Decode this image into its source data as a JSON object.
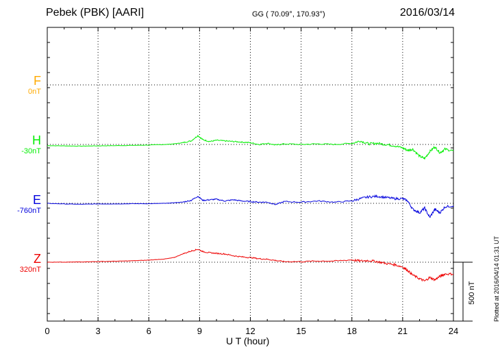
{
  "header": {
    "station": "Pebek (PBK)  [AARI]",
    "coords": "GG ( 70.09°, 170.93°)",
    "date": "2016/03/14"
  },
  "footer": {
    "plotted": "Plotted at 2016/04/14 01:31  UT",
    "scale": "500 nT"
  },
  "components": [
    {
      "name": "F",
      "baseline": "0nT",
      "color": "#ffaa00"
    },
    {
      "name": "H",
      "baseline": "-30nT",
      "color": "#00ee00"
    },
    {
      "name": "E",
      "baseline": "-760nT",
      "color": "#0000dd"
    },
    {
      "name": "Z",
      "baseline": "320nT",
      "color": "#ee0000"
    }
  ],
  "chart_data": {
    "type": "line",
    "xlabel": "U T (hour)",
    "xlim": [
      0,
      24
    ],
    "xticks": [
      "0",
      "3",
      "6",
      "9",
      "12",
      "15",
      "18",
      "21",
      "24"
    ],
    "scale_bar_nT": 500,
    "series": [
      {
        "name": "H",
        "color": "#00ee00",
        "x": [
          0,
          1,
          2,
          3,
          4,
          5,
          6,
          7,
          7.5,
          8,
          8.5,
          8.9,
          9.2,
          9.6,
          10,
          10.5,
          11,
          11.5,
          12,
          12.5,
          13,
          13.5,
          14,
          15,
          16,
          17,
          18,
          18.5,
          19,
          19.5,
          20,
          20.5,
          21,
          21.3,
          21.6,
          22,
          22.3,
          22.6,
          22.9,
          23.2,
          23.5,
          24
        ],
        "y": [
          -10,
          -12,
          -14,
          -12,
          -10,
          -8,
          -5,
          0,
          5,
          15,
          30,
          75,
          40,
          25,
          35,
          30,
          25,
          20,
          15,
          0,
          10,
          -5,
          5,
          0,
          5,
          0,
          10,
          30,
          5,
          10,
          0,
          -10,
          -30,
          -50,
          -40,
          -100,
          -120,
          -60,
          -20,
          -70,
          -40,
          -55
        ]
      },
      {
        "name": "E",
        "color": "#0000dd",
        "x": [
          0,
          1,
          2,
          3,
          4,
          5,
          6,
          7,
          7.5,
          8,
          8.5,
          8.9,
          9.2,
          9.6,
          10,
          10.5,
          11,
          11.5,
          12,
          12.5,
          13,
          13.5,
          14,
          15,
          16,
          17,
          18,
          18.5,
          19,
          19.5,
          20,
          20.5,
          21,
          21.3,
          21.6,
          22,
          22.3,
          22.6,
          22.9,
          23.2,
          23.5,
          24
        ],
        "y": [
          0,
          -5,
          -8,
          -5,
          -5,
          -3,
          -3,
          0,
          5,
          10,
          25,
          60,
          25,
          30,
          35,
          20,
          30,
          20,
          15,
          10,
          10,
          -10,
          15,
          10,
          20,
          10,
          20,
          40,
          55,
          60,
          50,
          40,
          40,
          20,
          -50,
          -80,
          -40,
          -120,
          -50,
          -80,
          -30,
          -20
        ]
      },
      {
        "name": "Z",
        "color": "#ee0000",
        "x": [
          0,
          1,
          2,
          3,
          4,
          5,
          6,
          7,
          7.5,
          8,
          8.5,
          8.9,
          9.2,
          9.6,
          10,
          10.5,
          11,
          11.5,
          12,
          12.5,
          13,
          13.5,
          14,
          15,
          16,
          17,
          18,
          18.5,
          19,
          19.5,
          20,
          20.5,
          21,
          21.3,
          21.6,
          22,
          22.3,
          22.6,
          22.9,
          23.2,
          23.5,
          24
        ],
        "y": [
          0,
          0,
          3,
          5,
          8,
          12,
          18,
          28,
          40,
          70,
          95,
          110,
          90,
          80,
          75,
          70,
          55,
          45,
          40,
          30,
          25,
          15,
          5,
          5,
          10,
          10,
          20,
          10,
          15,
          5,
          -10,
          -20,
          -40,
          -70,
          -110,
          -140,
          -160,
          -130,
          -150,
          -120,
          -100,
          -100
        ]
      }
    ]
  }
}
